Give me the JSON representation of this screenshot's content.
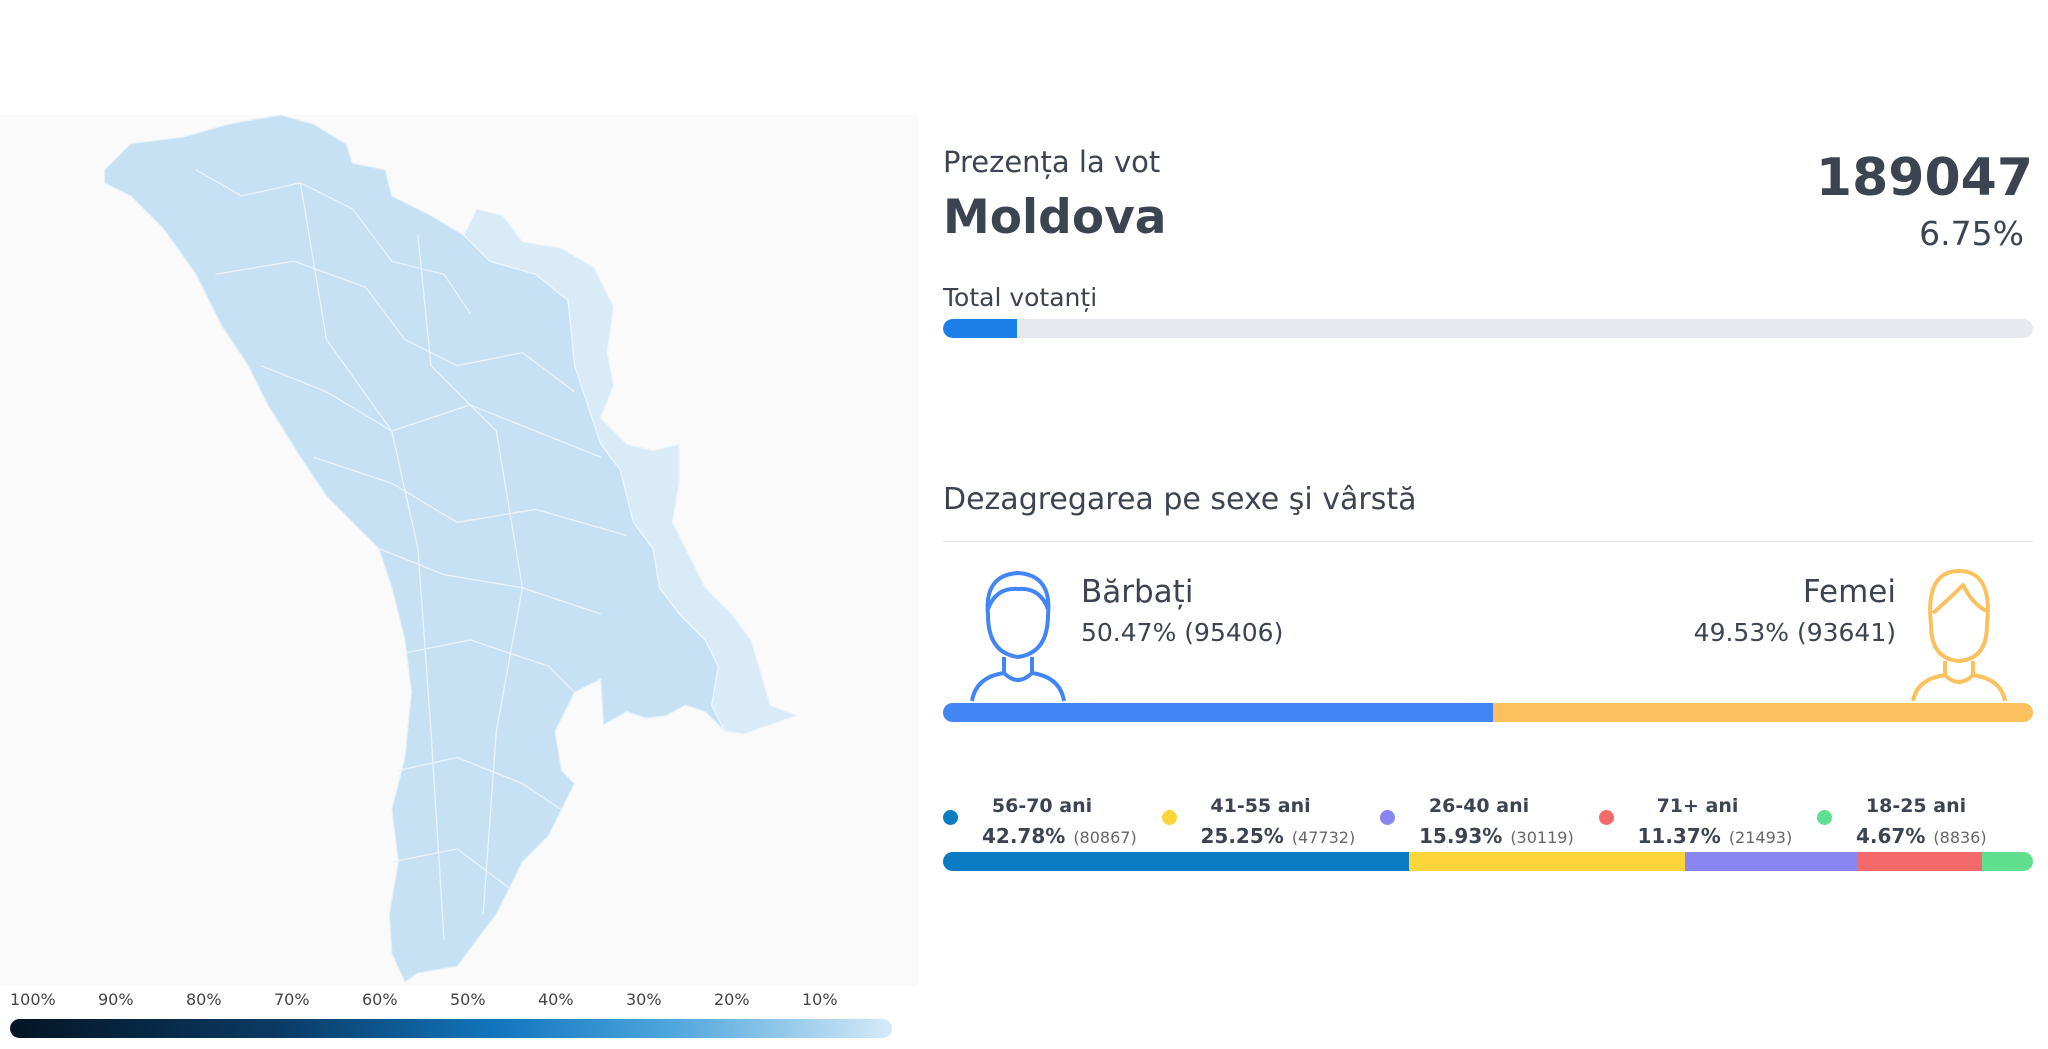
{
  "map_legend": [
    "100%",
    "90%",
    "80%",
    "70%",
    "60%",
    "50%",
    "40%",
    "30%",
    "20%",
    "10%"
  ],
  "turnout": {
    "title": "Prezența la vot",
    "region": "Moldova",
    "count": 189047,
    "percent": {
      "value": 6.75,
      "label": "6.75%"
    },
    "bar_label": "Total votanți",
    "bar_color": "#1a7fe8"
  },
  "breakdown": {
    "title": "Dezagregarea pe sexe şi vârstă",
    "gender": [
      {
        "name": "Bărbați",
        "percent": {
          "value": 50.47,
          "label": "50.47%"
        },
        "count": {
          "value": 95406,
          "label": "(95406)"
        },
        "color": "#4285f4"
      },
      {
        "name": "Femei",
        "percent": {
          "value": 49.53,
          "label": "49.53%"
        },
        "count": {
          "value": 93641,
          "label": "(93641)"
        },
        "color": "#fbc15e"
      }
    ],
    "age": [
      {
        "name": "56-70 ani",
        "percent": {
          "value": 42.78,
          "label": "42.78%"
        },
        "count": {
          "value": 80867,
          "label": "(80867)"
        },
        "color": "#0b7bc4"
      },
      {
        "name": "41-55 ani",
        "percent": {
          "value": 25.25,
          "label": "25.25%"
        },
        "count": {
          "value": 47732,
          "label": "(47732)"
        },
        "color": "#fdd43a"
      },
      {
        "name": "26-40 ani",
        "percent": {
          "value": 15.93,
          "label": "15.93%"
        },
        "count": {
          "value": 30119,
          "label": "(30119)"
        },
        "color": "#8a86f0"
      },
      {
        "name": "71+ ani",
        "percent": {
          "value": 11.37,
          "label": "11.37%"
        },
        "count": {
          "value": 21493,
          "label": "(21493)"
        },
        "color": "#f46a6a"
      },
      {
        "name": "18-25 ani",
        "percent": {
          "value": 4.67,
          "label": "4.67%"
        },
        "count": {
          "value": 8836,
          "label": "(8836)"
        },
        "color": "#5fe08e"
      }
    ]
  }
}
